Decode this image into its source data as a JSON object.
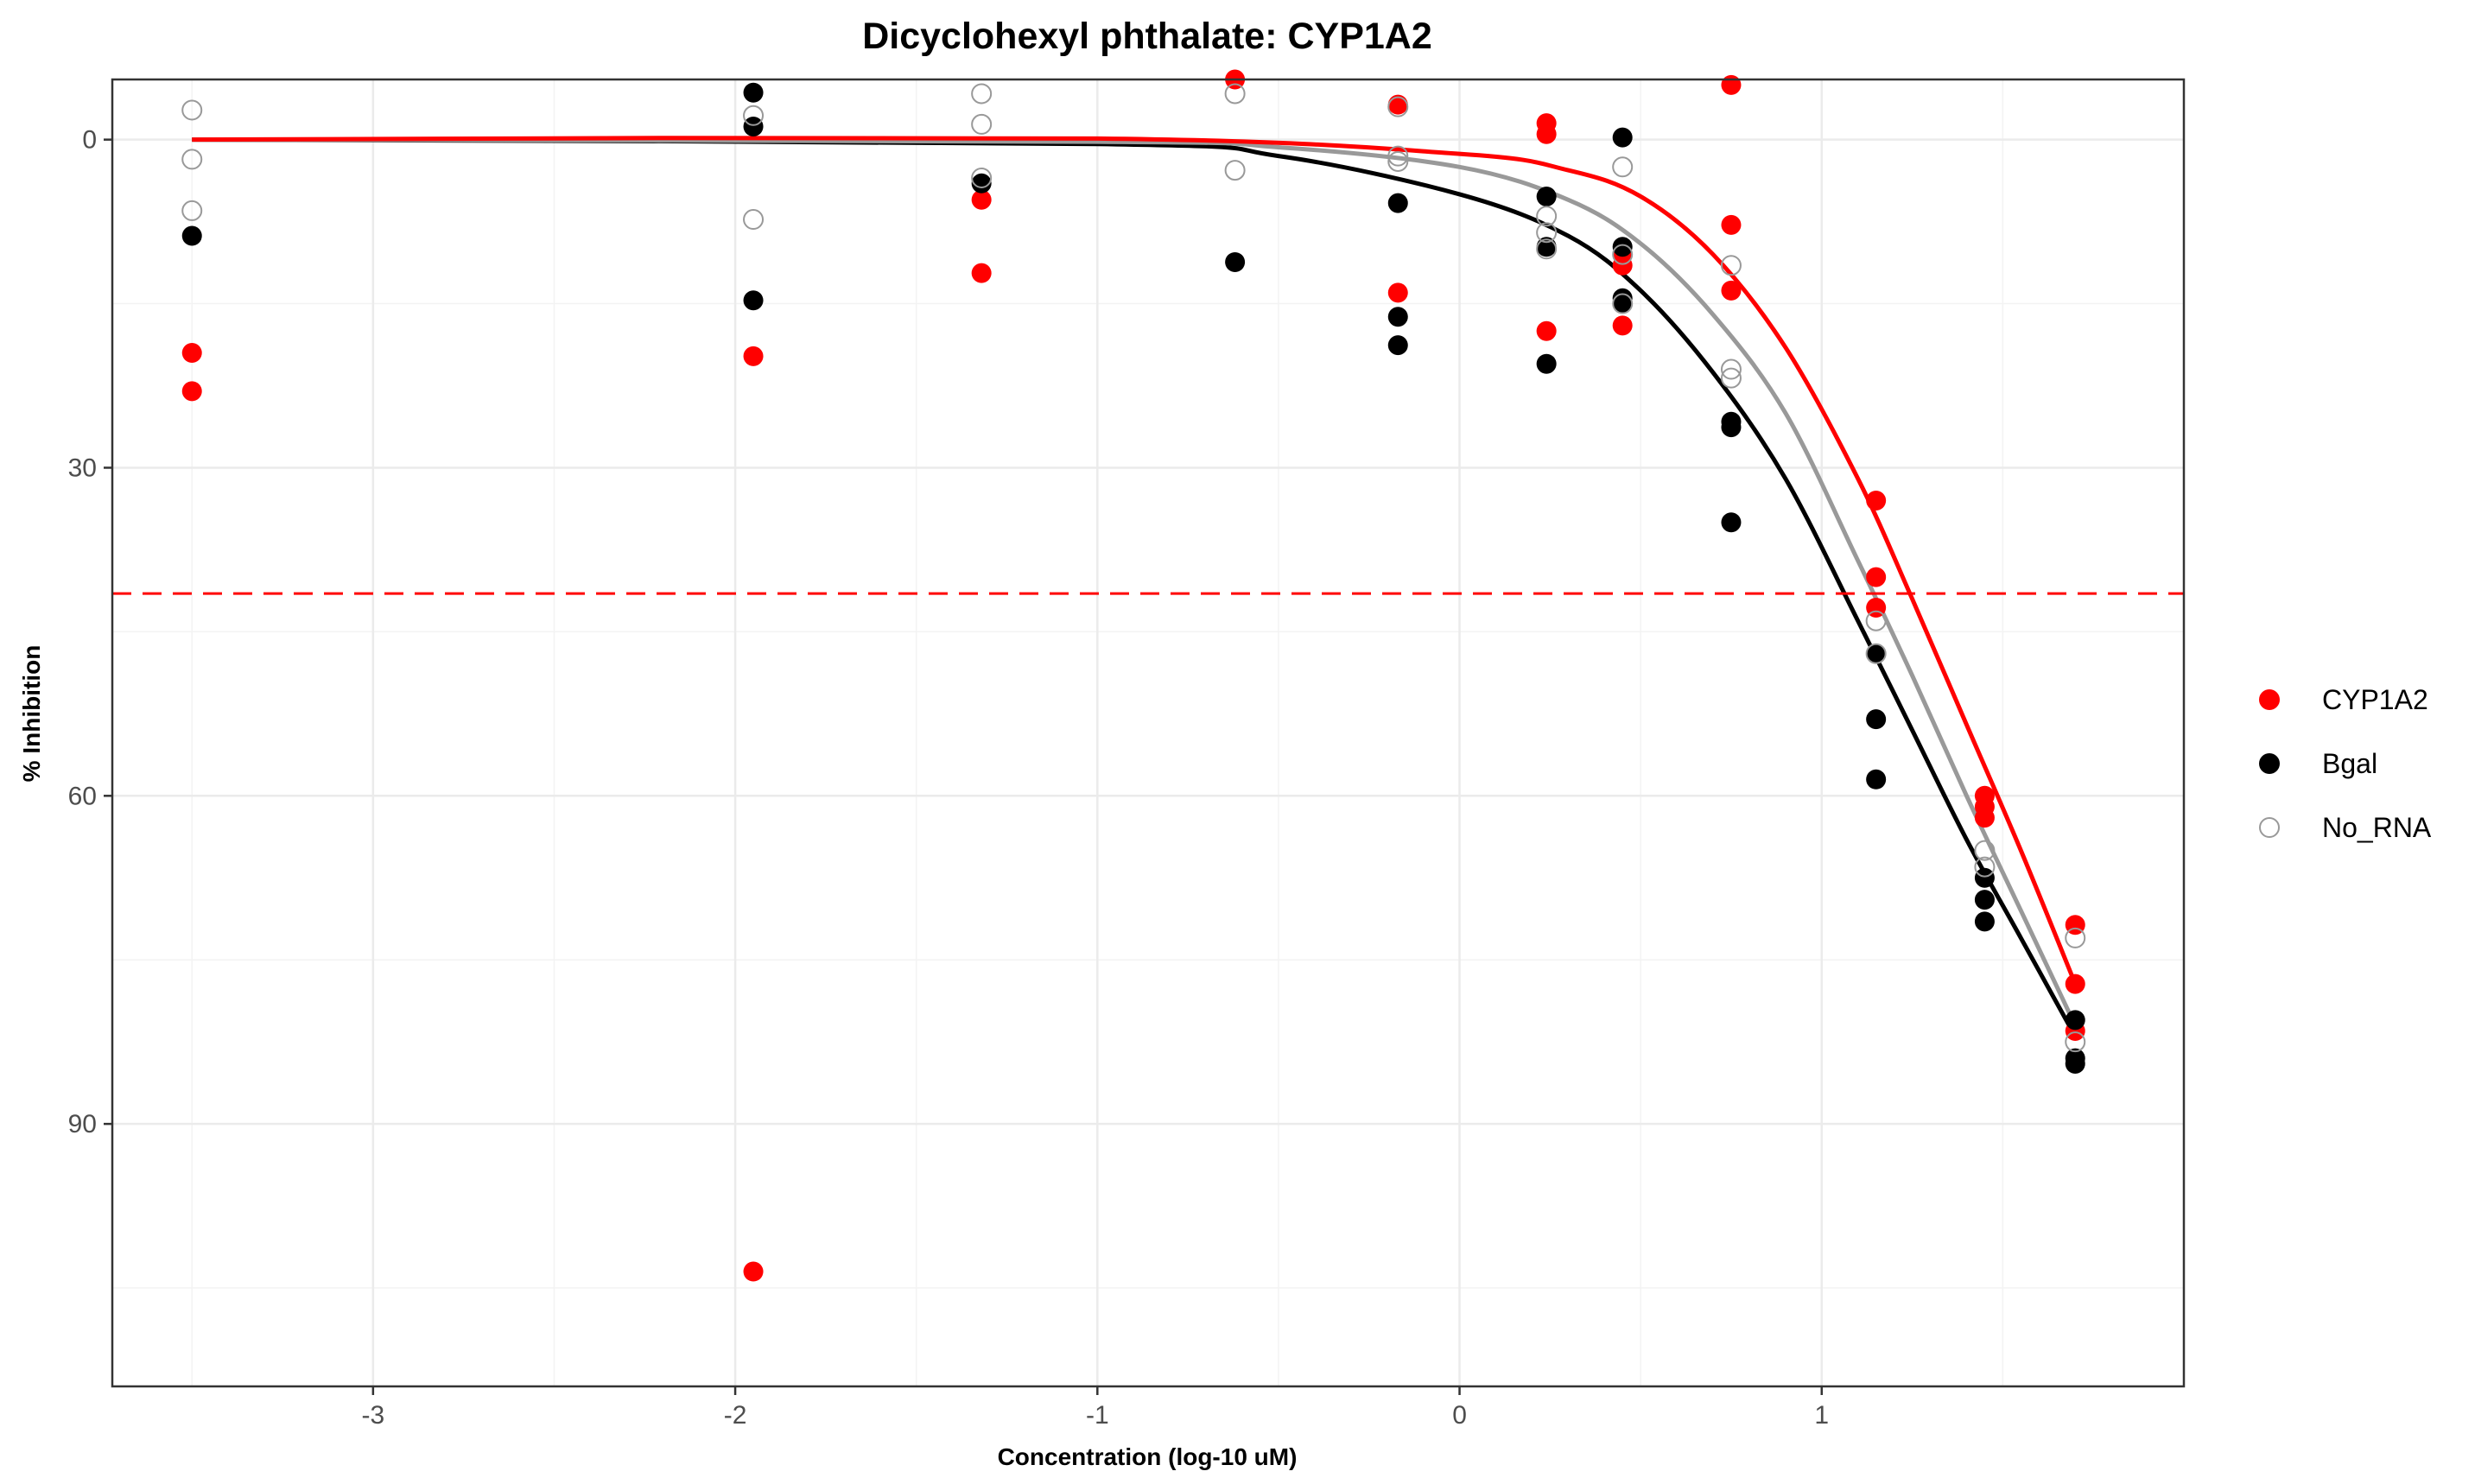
{
  "chart_data": {
    "type": "scatter",
    "title": "Dicyclohexyl phthalate: CYP1A2",
    "xlabel": "Concentration (log-10 uM)",
    "ylabel": "% Inhibition",
    "xlim": [
      -3.72,
      2.0
    ],
    "ylim": [
      114,
      -5.5
    ],
    "y_reversed": true,
    "x_ticks": [
      -3,
      -2,
      -1,
      0,
      1
    ],
    "y_ticks": [
      0,
      30,
      60,
      90
    ],
    "grid": true,
    "legend_position": "right",
    "reference_line": {
      "y": 41.5,
      "color": "#ff0000",
      "style": "dashed"
    },
    "series": [
      {
        "name": "CYP1A2",
        "color": "#ff0000",
        "marker": "filled-circle",
        "points": [
          [
            -3.5,
            19.5
          ],
          [
            -3.5,
            23.0
          ],
          [
            -1.95,
            19.8
          ],
          [
            -1.95,
            103.5
          ],
          [
            -1.32,
            5.5
          ],
          [
            -1.32,
            12.2
          ],
          [
            -0.62,
            -5.5
          ],
          [
            -0.17,
            -3.2
          ],
          [
            -0.17,
            14.0
          ],
          [
            0.24,
            -1.5
          ],
          [
            0.24,
            -0.5
          ],
          [
            0.24,
            17.5
          ],
          [
            0.45,
            10.5
          ],
          [
            0.45,
            11.5
          ],
          [
            0.45,
            17.0
          ],
          [
            0.75,
            -5.0
          ],
          [
            0.75,
            7.8
          ],
          [
            0.75,
            13.8
          ],
          [
            1.15,
            33.0
          ],
          [
            1.15,
            40.0
          ],
          [
            1.15,
            42.8
          ],
          [
            1.45,
            60.0
          ],
          [
            1.45,
            61.0
          ],
          [
            1.45,
            62.0
          ],
          [
            1.7,
            71.8
          ],
          [
            1.7,
            77.2
          ],
          [
            1.7,
            81.5
          ]
        ],
        "fit": [
          [
            -3.5,
            0.0
          ],
          [
            -1.0,
            -0.1
          ],
          [
            0.0,
            1.3
          ],
          [
            0.3,
            2.8
          ],
          [
            0.5,
            5.2
          ],
          [
            0.7,
            10.5
          ],
          [
            0.9,
            19.0
          ],
          [
            1.1,
            31.0
          ],
          [
            1.25,
            42.0
          ],
          [
            1.4,
            53.5
          ],
          [
            1.55,
            65.0
          ],
          [
            1.7,
            77.2
          ]
        ]
      },
      {
        "name": "Bgal",
        "color": "#000000",
        "marker": "filled-circle",
        "points": [
          [
            -3.5,
            8.8
          ],
          [
            -1.95,
            -4.3
          ],
          [
            -1.95,
            -1.2
          ],
          [
            -1.95,
            14.7
          ],
          [
            -1.32,
            4.0
          ],
          [
            -0.62,
            11.2
          ],
          [
            -0.17,
            5.8
          ],
          [
            -0.17,
            16.2
          ],
          [
            -0.17,
            18.8
          ],
          [
            0.24,
            5.2
          ],
          [
            0.24,
            9.8
          ],
          [
            0.24,
            20.5
          ],
          [
            0.45,
            -0.2
          ],
          [
            0.45,
            9.8
          ],
          [
            0.45,
            14.5
          ],
          [
            0.45,
            15.0
          ],
          [
            0.75,
            25.8
          ],
          [
            0.75,
            26.3
          ],
          [
            0.75,
            35.0
          ],
          [
            1.15,
            47.0
          ],
          [
            1.15,
            53.0
          ],
          [
            1.15,
            58.5
          ],
          [
            1.45,
            67.5
          ],
          [
            1.45,
            69.5
          ],
          [
            1.45,
            71.5
          ],
          [
            1.7,
            80.5
          ],
          [
            1.7,
            84.0
          ],
          [
            1.7,
            84.5
          ]
        ],
        "fit": [
          [
            -3.5,
            0.0
          ],
          [
            -1.0,
            0.4
          ],
          [
            -0.5,
            1.5
          ],
          [
            0.0,
            5.0
          ],
          [
            0.3,
            8.8
          ],
          [
            0.5,
            13.8
          ],
          [
            0.7,
            21.3
          ],
          [
            0.9,
            31.0
          ],
          [
            1.1,
            44.0
          ],
          [
            1.25,
            54.0
          ],
          [
            1.4,
            64.0
          ],
          [
            1.55,
            73.0
          ],
          [
            1.7,
            82.0
          ]
        ]
      },
      {
        "name": "No_RNA",
        "color": "#999999",
        "marker": "open-circle",
        "points": [
          [
            -3.5,
            -2.7
          ],
          [
            -3.5,
            1.8
          ],
          [
            -3.5,
            6.5
          ],
          [
            -1.95,
            -2.2
          ],
          [
            -1.95,
            7.3
          ],
          [
            -1.32,
            -4.2
          ],
          [
            -1.32,
            -1.4
          ],
          [
            -1.32,
            3.5
          ],
          [
            -0.62,
            -4.2
          ],
          [
            -0.62,
            2.8
          ],
          [
            -0.17,
            -3.0
          ],
          [
            -0.17,
            1.5
          ],
          [
            -0.17,
            2.0
          ],
          [
            0.24,
            7.0
          ],
          [
            0.24,
            8.5
          ],
          [
            0.24,
            10.0
          ],
          [
            0.45,
            2.5
          ],
          [
            0.45,
            10.5
          ],
          [
            0.45,
            15.0
          ],
          [
            0.75,
            11.5
          ],
          [
            0.75,
            21.0
          ],
          [
            0.75,
            21.8
          ],
          [
            1.15,
            44.0
          ],
          [
            1.15,
            47.0
          ],
          [
            1.45,
            65.0
          ],
          [
            1.45,
            66.5
          ],
          [
            1.7,
            73.0
          ],
          [
            1.7,
            82.5
          ]
        ],
        "fit": [
          [
            -3.5,
            0.0
          ],
          [
            -1.0,
            0.2
          ],
          [
            -0.5,
            0.7
          ],
          [
            0.0,
            2.5
          ],
          [
            0.3,
            5.5
          ],
          [
            0.5,
            9.5
          ],
          [
            0.7,
            16.0
          ],
          [
            0.9,
            25.0
          ],
          [
            1.1,
            38.5
          ],
          [
            1.25,
            49.0
          ],
          [
            1.4,
            60.0
          ],
          [
            1.55,
            70.5
          ],
          [
            1.7,
            81.0
          ]
        ]
      }
    ]
  }
}
